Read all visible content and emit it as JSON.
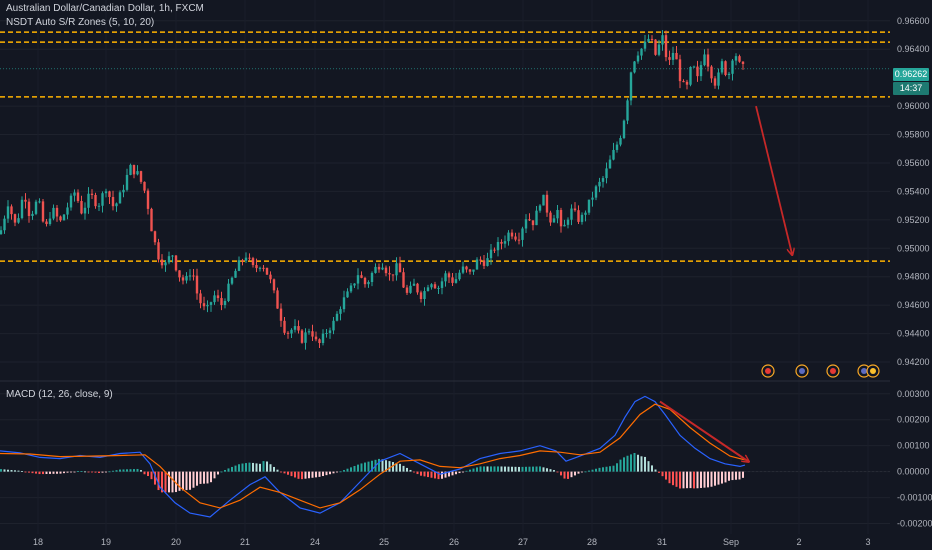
{
  "legend": {
    "symbol": "Australian Dollar/Canadian Dollar, 1h, FXCM",
    "indicator": "NSDT Auto S/R Zones (5, 10, 20)",
    "macd": "MACD (12, 26, close, 9)"
  },
  "price_scale": {
    "labels": [
      "0.96600",
      "0.96400",
      "0.96000",
      "0.95800",
      "0.95600",
      "0.95400",
      "0.95200",
      "0.95000",
      "0.94800",
      "0.94600",
      "0.94400",
      "0.94200"
    ],
    "current_price": "0.96262",
    "countdown": "14:37"
  },
  "macd_scale": {
    "labels": [
      "0.00300",
      "0.00200",
      "0.00100",
      "0.00000",
      "-0.00100",
      "-0.00200"
    ]
  },
  "time_axis": {
    "labels": [
      "18",
      "19",
      "20",
      "21",
      "24",
      "25",
      "26",
      "27",
      "28",
      "31",
      "Sep",
      "2",
      "3"
    ]
  },
  "colors": {
    "background": "#131722",
    "up": "#26a69a",
    "down": "#ef5350",
    "sr_line": "#ffb300",
    "arrow": "#c62828",
    "macd_line": "#2962ff",
    "signal_line": "#ff6d00"
  },
  "chart_data": {
    "type": "candlestick",
    "price_ylim": [
      0.9413,
      0.9669
    ],
    "sr_levels": [
      0.9652,
      0.9645,
      0.96065,
      0.9491
    ],
    "projection_target": 0.9496,
    "price_path": [
      [
        0,
        0.951
      ],
      [
        8,
        0.9532
      ],
      [
        16,
        0.9515
      ],
      [
        24,
        0.954
      ],
      [
        30,
        0.9522
      ],
      [
        38,
        0.9535
      ],
      [
        45,
        0.9512
      ],
      [
        52,
        0.9528
      ],
      [
        60,
        0.9518
      ],
      [
        68,
        0.953
      ],
      [
        75,
        0.954
      ],
      [
        82,
        0.9525
      ],
      [
        90,
        0.9538
      ],
      [
        98,
        0.953
      ],
      [
        106,
        0.9543
      ],
      [
        114,
        0.9528
      ],
      [
        122,
        0.954
      ],
      [
        130,
        0.9557
      ],
      [
        138,
        0.9552
      ],
      [
        146,
        0.9538
      ],
      [
        152,
        0.9512
      ],
      [
        158,
        0.9495
      ],
      [
        165,
        0.9488
      ],
      [
        172,
        0.9497
      ],
      [
        178,
        0.9482
      ],
      [
        185,
        0.9476
      ],
      [
        192,
        0.9486
      ],
      [
        198,
        0.9465
      ],
      [
        206,
        0.9455
      ],
      [
        214,
        0.9467
      ],
      [
        222,
        0.946
      ],
      [
        230,
        0.9475
      ],
      [
        238,
        0.9488
      ],
      [
        246,
        0.9495
      ],
      [
        254,
        0.9485
      ],
      [
        262,
        0.949
      ],
      [
        270,
        0.9478
      ],
      [
        278,
        0.9458
      ],
      [
        286,
        0.944
      ],
      [
        294,
        0.9444
      ],
      [
        302,
        0.9436
      ],
      [
        310,
        0.9444
      ],
      [
        318,
        0.9431
      ],
      [
        326,
        0.9441
      ],
      [
        334,
        0.9448
      ],
      [
        342,
        0.9462
      ],
      [
        350,
        0.947
      ],
      [
        358,
        0.9482
      ],
      [
        366,
        0.9474
      ],
      [
        374,
        0.9485
      ],
      [
        382,
        0.949
      ],
      [
        390,
        0.948
      ],
      [
        398,
        0.9488
      ],
      [
        406,
        0.9467
      ],
      [
        414,
        0.9474
      ],
      [
        422,
        0.9466
      ],
      [
        430,
        0.9478
      ],
      [
        438,
        0.9472
      ],
      [
        446,
        0.9482
      ],
      [
        454,
        0.9476
      ],
      [
        462,
        0.9486
      ],
      [
        470,
        0.9482
      ],
      [
        478,
        0.9492
      ],
      [
        486,
        0.949
      ],
      [
        494,
        0.95
      ],
      [
        502,
        0.9504
      ],
      [
        510,
        0.9512
      ],
      [
        518,
        0.9507
      ],
      [
        526,
        0.9522
      ],
      [
        534,
        0.9518
      ],
      [
        542,
        0.9538
      ],
      [
        550,
        0.952
      ],
      [
        558,
        0.9527
      ],
      [
        562,
        0.9508
      ],
      [
        566,
        0.952
      ],
      [
        572,
        0.9527
      ],
      [
        580,
        0.9519
      ],
      [
        588,
        0.953
      ],
      [
        596,
        0.9542
      ],
      [
        604,
        0.955
      ],
      [
        612,
        0.9565
      ],
      [
        620,
        0.9578
      ],
      [
        626,
        0.9598
      ],
      [
        632,
        0.963
      ],
      [
        638,
        0.9638
      ],
      [
        644,
        0.9642
      ],
      [
        650,
        0.9649
      ],
      [
        656,
        0.9635
      ],
      [
        662,
        0.965
      ],
      [
        668,
        0.9628
      ],
      [
        674,
        0.964
      ],
      [
        680,
        0.962
      ],
      [
        686,
        0.961
      ],
      [
        692,
        0.963
      ],
      [
        698,
        0.9618
      ],
      [
        704,
        0.964
      ],
      [
        710,
        0.9625
      ],
      [
        716,
        0.9615
      ],
      [
        722,
        0.963
      ],
      [
        728,
        0.962
      ],
      [
        734,
        0.964
      ],
      [
        740,
        0.9628
      ],
      [
        745,
        0.9626
      ]
    ],
    "macd_ylim": [
      -0.00225,
      0.0033
    ],
    "macd_path": [
      [
        0,
        0.0008
      ],
      [
        20,
        0.00072
      ],
      [
        40,
        0.00055
      ],
      [
        60,
        0.0005
      ],
      [
        80,
        0.00062
      ],
      [
        100,
        0.00055
      ],
      [
        120,
        0.0007
      ],
      [
        140,
        0.00075
      ],
      [
        150,
        0.0003
      ],
      [
        160,
        -0.0006
      ],
      [
        175,
        -0.0012
      ],
      [
        190,
        -0.0016
      ],
      [
        210,
        -0.00175
      ],
      [
        230,
        -0.0011
      ],
      [
        250,
        -0.0005
      ],
      [
        265,
        -0.0002
      ],
      [
        280,
        -0.0008
      ],
      [
        300,
        -0.0014
      ],
      [
        320,
        -0.0016
      ],
      [
        340,
        -0.0012
      ],
      [
        360,
        -0.0004
      ],
      [
        380,
        0.0004
      ],
      [
        400,
        0.0007
      ],
      [
        420,
        0.0003
      ],
      [
        440,
        -0.0001
      ],
      [
        460,
        0.0001
      ],
      [
        480,
        0.0005
      ],
      [
        500,
        0.0007
      ],
      [
        520,
        0.0008
      ],
      [
        540,
        0.001
      ],
      [
        556,
        0.0008
      ],
      [
        566,
        0.0004
      ],
      [
        580,
        0.0006
      ],
      [
        600,
        0.0009
      ],
      [
        615,
        0.0014
      ],
      [
        625,
        0.0021
      ],
      [
        635,
        0.0027
      ],
      [
        645,
        0.0029
      ],
      [
        655,
        0.0027
      ],
      [
        665,
        0.0022
      ],
      [
        680,
        0.0014
      ],
      [
        695,
        0.0009
      ],
      [
        710,
        0.0005
      ],
      [
        725,
        0.0003
      ],
      [
        740,
        0.0002
      ],
      [
        745,
        0.00025
      ]
    ],
    "signal_path": [
      [
        0,
        0.0007
      ],
      [
        30,
        0.00068
      ],
      [
        60,
        0.00058
      ],
      [
        90,
        0.0006
      ],
      [
        120,
        0.00062
      ],
      [
        145,
        0.00065
      ],
      [
        160,
        0.0002
      ],
      [
        180,
        -0.0006
      ],
      [
        200,
        -0.0012
      ],
      [
        220,
        -0.0014
      ],
      [
        240,
        -0.0011
      ],
      [
        260,
        -0.0006
      ],
      [
        280,
        -0.0008
      ],
      [
        300,
        -0.0011
      ],
      [
        320,
        -0.0014
      ],
      [
        340,
        -0.0012
      ],
      [
        360,
        -0.0007
      ],
      [
        380,
        -0.0001
      ],
      [
        400,
        0.0004
      ],
      [
        420,
        0.00045
      ],
      [
        440,
        0.0002
      ],
      [
        460,
        0.00015
      ],
      [
        480,
        0.0003
      ],
      [
        500,
        0.0005
      ],
      [
        520,
        0.00062
      ],
      [
        540,
        0.0008
      ],
      [
        560,
        0.00075
      ],
      [
        580,
        0.00065
      ],
      [
        600,
        0.00075
      ],
      [
        620,
        0.0013
      ],
      [
        640,
        0.0022
      ],
      [
        655,
        0.0026
      ],
      [
        670,
        0.0024
      ],
      [
        690,
        0.0017
      ],
      [
        710,
        0.0011
      ],
      [
        730,
        0.0006
      ],
      [
        745,
        0.00045
      ]
    ]
  }
}
